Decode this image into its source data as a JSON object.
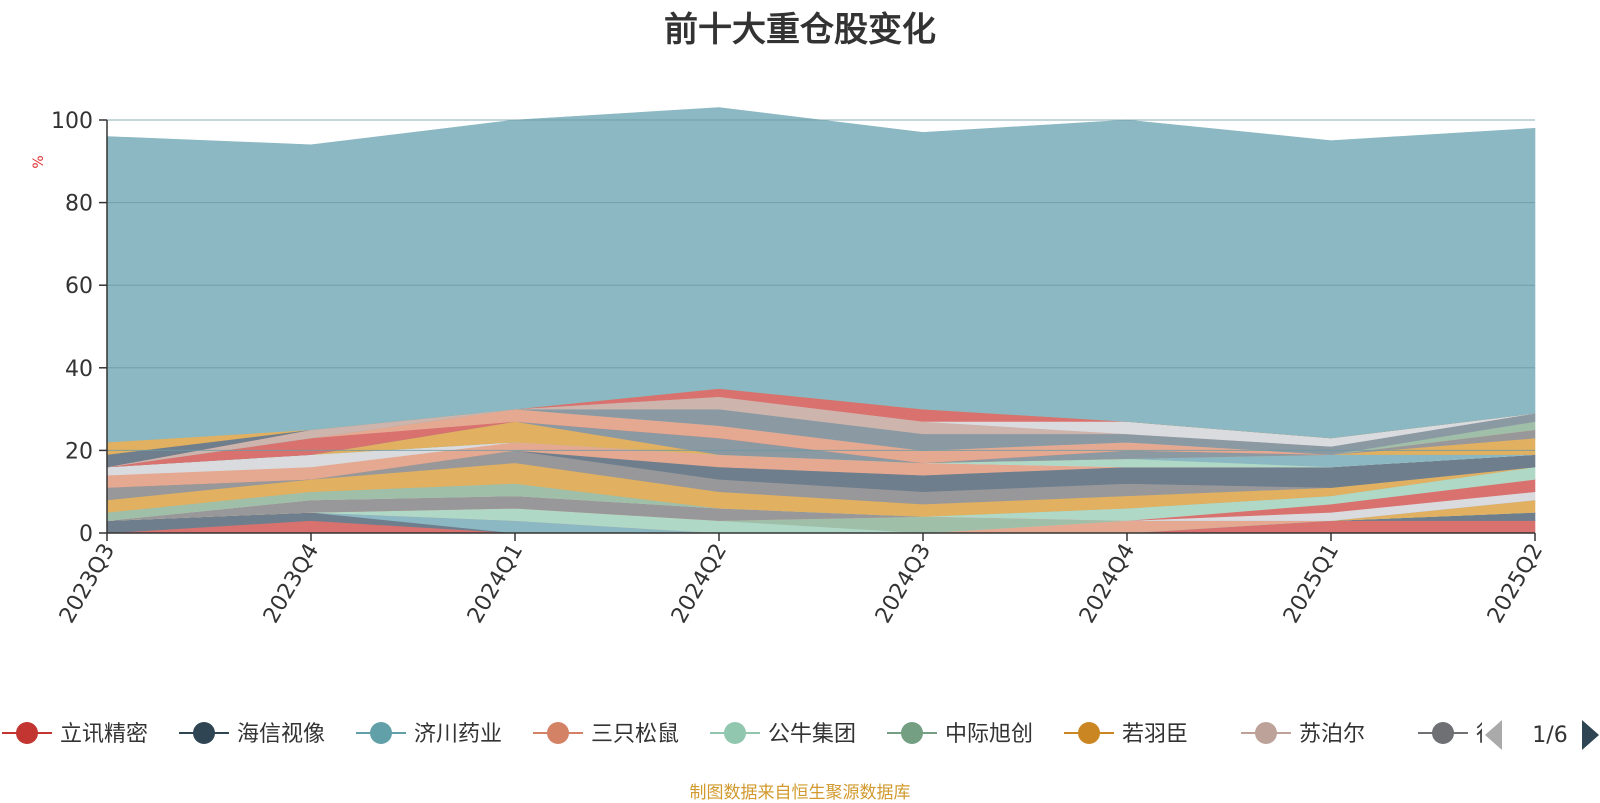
{
  "chart_data": {
    "type": "area",
    "title": "前十大重仓股变化",
    "ylabel": "%",
    "ylim": [
      0,
      100
    ],
    "yticks": [
      0,
      20,
      40,
      60,
      80,
      100
    ],
    "grid": true,
    "legend_position": "bottom",
    "categories": [
      "2023Q3",
      "2023Q4",
      "2024Q1",
      "2024Q2",
      "2024Q3",
      "2024Q4",
      "2025Q1",
      "2025Q2"
    ],
    "series": [
      {
        "name": "立讯精密",
        "color": "#d9726f",
        "values": [
          0,
          3,
          0,
          0,
          0,
          0,
          3,
          3
        ]
      },
      {
        "name": "海信视像",
        "color": "#6e7e8d",
        "values": [
          3,
          2,
          0,
          0,
          0,
          0,
          0,
          2
        ]
      },
      {
        "name": "济川药业",
        "color": "#8bb8c2",
        "values": [
          0,
          0,
          3,
          0,
          0,
          0,
          0,
          0
        ]
      },
      {
        "name": "三只松鼠",
        "color": "#e5a992",
        "values": [
          0,
          0,
          0,
          0,
          0,
          3,
          0,
          0
        ]
      },
      {
        "name": "公牛集团",
        "color": "#b0d8c6",
        "values": [
          0,
          0,
          3,
          3,
          0,
          0,
          0,
          0
        ]
      },
      {
        "name": "中际旭创",
        "color": "#9fbfa9",
        "values": [
          0,
          0,
          0,
          0,
          4,
          0,
          0,
          0
        ]
      },
      {
        "name": "若羽臣",
        "color": "#e1b060",
        "values": [
          0,
          0,
          0,
          0,
          0,
          0,
          0,
          3
        ]
      },
      {
        "name": "苏泊尔",
        "color": "#cdb5ad",
        "values": [
          0,
          0,
          0,
          0,
          0,
          0,
          0,
          0
        ]
      },
      {
        "name": "行动教育",
        "color": "#98989a",
        "values": [
          0,
          3,
          3,
          3,
          0,
          0,
          0,
          0
        ]
      },
      {
        "name": "",
        "color": "#dadbdf",
        "values": [
          0,
          0,
          0,
          0,
          0,
          0,
          2,
          2
        ]
      },
      {
        "name": "",
        "color": "#d9726f",
        "values": [
          0,
          0,
          0,
          0,
          0,
          0,
          2,
          3
        ]
      },
      {
        "name": "",
        "color": "#b0d8c6",
        "values": [
          0,
          0,
          0,
          0,
          0,
          3,
          2,
          3
        ]
      },
      {
        "name": "",
        "color": "#9fbfa9",
        "values": [
          2,
          2,
          3,
          0,
          0,
          0,
          0,
          0
        ]
      },
      {
        "name": "",
        "color": "#e1b060",
        "values": [
          3,
          3,
          5,
          4,
          3,
          3,
          2,
          0
        ]
      },
      {
        "name": "",
        "color": "#98989a",
        "values": [
          3,
          0,
          3,
          3,
          3,
          3,
          0,
          0
        ]
      },
      {
        "name": "",
        "color": "#6e7e8d",
        "values": [
          0,
          0,
          0,
          3,
          4,
          4,
          5,
          3
        ]
      },
      {
        "name": "",
        "color": "#e5a992",
        "values": [
          3,
          3,
          2,
          3,
          3,
          0,
          0,
          0
        ]
      },
      {
        "name": "",
        "color": "#dadbdf",
        "values": [
          2,
          3,
          0,
          0,
          0,
          0,
          0,
          0
        ]
      },
      {
        "name": "",
        "color": "#b0d8c6",
        "values": [
          0,
          0,
          0,
          0,
          0,
          2,
          0,
          0
        ]
      },
      {
        "name": "",
        "color": "#8bb8c2",
        "values": [
          0,
          0,
          0,
          0,
          0,
          0,
          3,
          0
        ]
      },
      {
        "name": "",
        "color": "#e1b060",
        "values": [
          0,
          0,
          5,
          0,
          0,
          0,
          0,
          4
        ]
      },
      {
        "name": "",
        "color": "#8b99a3",
        "values": [
          0,
          0,
          0,
          4,
          0,
          2,
          0,
          0
        ]
      },
      {
        "name": "",
        "color": "#98989a",
        "values": [
          0,
          0,
          0,
          0,
          0,
          0,
          0,
          2
        ]
      },
      {
        "name": "",
        "color": "#d9726f",
        "values": [
          0,
          4,
          0,
          0,
          0,
          0,
          0,
          0
        ]
      },
      {
        "name": "",
        "color": "#e5a992",
        "values": [
          0,
          0,
          3,
          3,
          3,
          2,
          0,
          0
        ]
      },
      {
        "name": "",
        "color": "#9fbfa9",
        "values": [
          0,
          0,
          0,
          0,
          0,
          0,
          0,
          2
        ]
      },
      {
        "name": "",
        "color": "#8b99a3",
        "values": [
          0,
          0,
          0,
          4,
          4,
          2,
          2,
          2
        ]
      },
      {
        "name": "",
        "color": "#cdb5ad",
        "values": [
          0,
          2,
          0,
          3,
          3,
          0,
          0,
          0
        ]
      },
      {
        "name": "",
        "color": "#dadbdf",
        "values": [
          0,
          0,
          0,
          0,
          0,
          3,
          2,
          0
        ]
      },
      {
        "name": "",
        "color": "#d9726f",
        "values": [
          0,
          0,
          0,
          2,
          3,
          0,
          0,
          0
        ]
      },
      {
        "name": "",
        "color": "#6e7e8d",
        "values": [
          3,
          0,
          0,
          0,
          0,
          0,
          0,
          0
        ]
      },
      {
        "name": "",
        "color": "#e1b060",
        "values": [
          3,
          0,
          0,
          0,
          0,
          0,
          0,
          0
        ]
      },
      {
        "name": "",
        "color": "#8bb8c2",
        "values": [
          74,
          69,
          70,
          68,
          67,
          73,
          72,
          69
        ]
      }
    ]
  },
  "legend": {
    "items": [
      {
        "name": "立讯精密",
        "color": "#c23531"
      },
      {
        "name": "海信视像",
        "color": "#2f4554"
      },
      {
        "name": "济川药业",
        "color": "#61a0a8"
      },
      {
        "name": "三只松鼠",
        "color": "#d48265"
      },
      {
        "name": "公牛集团",
        "color": "#91c7ae"
      },
      {
        "name": "中际旭创",
        "color": "#749f83"
      },
      {
        "name": "若羽臣",
        "color": "#ca8622"
      },
      {
        "name": "苏泊尔",
        "color": "#bda29a"
      },
      {
        "name": "行动教育",
        "color": "#6e7074"
      }
    ],
    "page": "1/6",
    "prev_icon": "triangle-left-icon",
    "next_icon": "triangle-right-icon"
  },
  "footer": "制图数据来自恒生聚源数据库",
  "colors": {
    "axis": "#333333",
    "grid": "#6d9aa3",
    "ylabel": "#e03030",
    "legend_text": "#333333",
    "pager_disabled": "#aaaaaa",
    "pager_active": "#2f4554"
  }
}
